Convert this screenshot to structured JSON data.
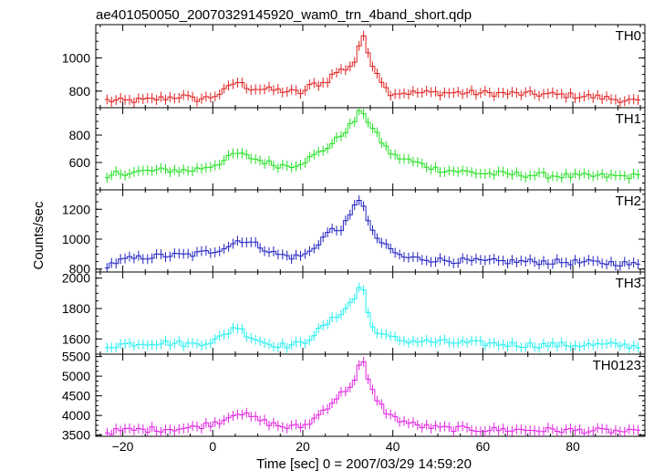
{
  "title": "ae401050050_20070329145920_wam0_trn_4band_short.qdp",
  "xlabel": "Time [sec] 0 = 2007/03/29 14:59:20",
  "ylabel": "Counts/sec",
  "chart_data": {
    "type": "line",
    "style": "step-with-error-bars",
    "xlim": [
      -26,
      96
    ],
    "x_ticks": [
      -20,
      0,
      20,
      40,
      60,
      80
    ],
    "x_tick_labels": [
      "−20",
      "0",
      "20",
      "40",
      "60",
      "80"
    ],
    "bin_width_sec": 1,
    "panels": [
      {
        "name": "TH0",
        "color": "#e02020",
        "ylim": [
          700,
          1200
        ],
        "y_ticks": [
          800,
          1000
        ],
        "knots": [
          [
            -24,
            745
          ],
          [
            -20,
            740
          ],
          [
            -15,
            745
          ],
          [
            -10,
            760
          ],
          [
            -7,
            770
          ],
          [
            -4,
            750
          ],
          [
            -1,
            760
          ],
          [
            2,
            790
          ],
          [
            4,
            830
          ],
          [
            5,
            860
          ],
          [
            8,
            820
          ],
          [
            12,
            810
          ],
          [
            16,
            800
          ],
          [
            20,
            790
          ],
          [
            22,
            840
          ],
          [
            25,
            850
          ],
          [
            27,
            910
          ],
          [
            30,
            940
          ],
          [
            32,
            990
          ],
          [
            33,
            1160
          ],
          [
            35,
            990
          ],
          [
            38,
            840
          ],
          [
            39,
            790
          ],
          [
            45,
            790
          ],
          [
            55,
            790
          ],
          [
            65,
            785
          ],
          [
            75,
            780
          ],
          [
            85,
            765
          ],
          [
            90,
            750
          ],
          [
            95,
            735
          ]
        ]
      },
      {
        "name": "TH1",
        "color": "#20e020",
        "ylim": [
          400,
          1000
        ],
        "y_ticks": [
          600,
          800
        ],
        "knots": [
          [
            -24,
            450
          ],
          [
            -22,
            520
          ],
          [
            -15,
            535
          ],
          [
            -10,
            545
          ],
          [
            -5,
            540
          ],
          [
            0,
            580
          ],
          [
            3,
            620
          ],
          [
            5,
            670
          ],
          [
            10,
            620
          ],
          [
            14,
            580
          ],
          [
            18,
            580
          ],
          [
            21,
            620
          ],
          [
            24,
            680
          ],
          [
            27,
            750
          ],
          [
            30,
            850
          ],
          [
            32,
            920
          ],
          [
            33,
            1000
          ],
          [
            35,
            870
          ],
          [
            38,
            730
          ],
          [
            40,
            650
          ],
          [
            45,
            600
          ],
          [
            50,
            550
          ],
          [
            60,
            520
          ],
          [
            70,
            510
          ],
          [
            80,
            500
          ],
          [
            90,
            500
          ],
          [
            95,
            500
          ]
        ]
      },
      {
        "name": "TH2",
        "color": "#2020c0",
        "ylim": [
          780,
          1330
        ],
        "y_ticks": [
          800,
          1000,
          1200
        ],
        "knots": [
          [
            -24,
            820
          ],
          [
            -20,
            860
          ],
          [
            -15,
            880
          ],
          [
            -10,
            890
          ],
          [
            -5,
            895
          ],
          [
            0,
            920
          ],
          [
            4,
            960
          ],
          [
            6,
            1000
          ],
          [
            10,
            960
          ],
          [
            14,
            900
          ],
          [
            18,
            880
          ],
          [
            21,
            900
          ],
          [
            23,
            960
          ],
          [
            26,
            1060
          ],
          [
            28,
            1060
          ],
          [
            30,
            1120
          ],
          [
            32,
            1250
          ],
          [
            33,
            1290
          ],
          [
            35,
            1060
          ],
          [
            38,
            960
          ],
          [
            42,
            880
          ],
          [
            50,
            860
          ],
          [
            60,
            850
          ],
          [
            70,
            850
          ],
          [
            80,
            845
          ],
          [
            90,
            840
          ],
          [
            95,
            825
          ]
        ]
      },
      {
        "name": "TH3",
        "color": "#20f0f0",
        "ylim": [
          1500,
          2040
        ],
        "y_ticks": [
          1600,
          1800,
          2000
        ],
        "knots": [
          [
            -24,
            1550
          ],
          [
            -20,
            1565
          ],
          [
            -15,
            1575
          ],
          [
            -10,
            1575
          ],
          [
            -5,
            1565
          ],
          [
            0,
            1585
          ],
          [
            3,
            1630
          ],
          [
            5,
            1690
          ],
          [
            8,
            1620
          ],
          [
            12,
            1570
          ],
          [
            16,
            1555
          ],
          [
            20,
            1570
          ],
          [
            22,
            1620
          ],
          [
            25,
            1690
          ],
          [
            28,
            1760
          ],
          [
            30,
            1820
          ],
          [
            32,
            1880
          ],
          [
            33,
            2000
          ],
          [
            35,
            1690
          ],
          [
            38,
            1620
          ],
          [
            42,
            1590
          ],
          [
            50,
            1580
          ],
          [
            60,
            1570
          ],
          [
            70,
            1560
          ],
          [
            80,
            1560
          ],
          [
            90,
            1560
          ],
          [
            95,
            1550
          ]
        ]
      },
      {
        "name": "TH0123",
        "color": "#e020e0",
        "ylim": [
          3470,
          5560
        ],
        "y_ticks": [
          3500,
          4000,
          4500,
          5000,
          5500
        ],
        "knots": [
          [
            -24,
            3560
          ],
          [
            -20,
            3620
          ],
          [
            -15,
            3640
          ],
          [
            -10,
            3660
          ],
          [
            -5,
            3680
          ],
          [
            0,
            3800
          ],
          [
            3,
            3920
          ],
          [
            5,
            4100
          ],
          [
            8,
            3980
          ],
          [
            12,
            3820
          ],
          [
            16,
            3700
          ],
          [
            20,
            3720
          ],
          [
            22,
            3860
          ],
          [
            25,
            4180
          ],
          [
            28,
            4500
          ],
          [
            30,
            4700
          ],
          [
            32,
            4950
          ],
          [
            33,
            5520
          ],
          [
            35,
            4700
          ],
          [
            38,
            4150
          ],
          [
            40,
            3950
          ],
          [
            45,
            3750
          ],
          [
            50,
            3680
          ],
          [
            60,
            3640
          ],
          [
            70,
            3630
          ],
          [
            80,
            3620
          ],
          [
            90,
            3600
          ],
          [
            95,
            3560
          ]
        ]
      }
    ]
  }
}
